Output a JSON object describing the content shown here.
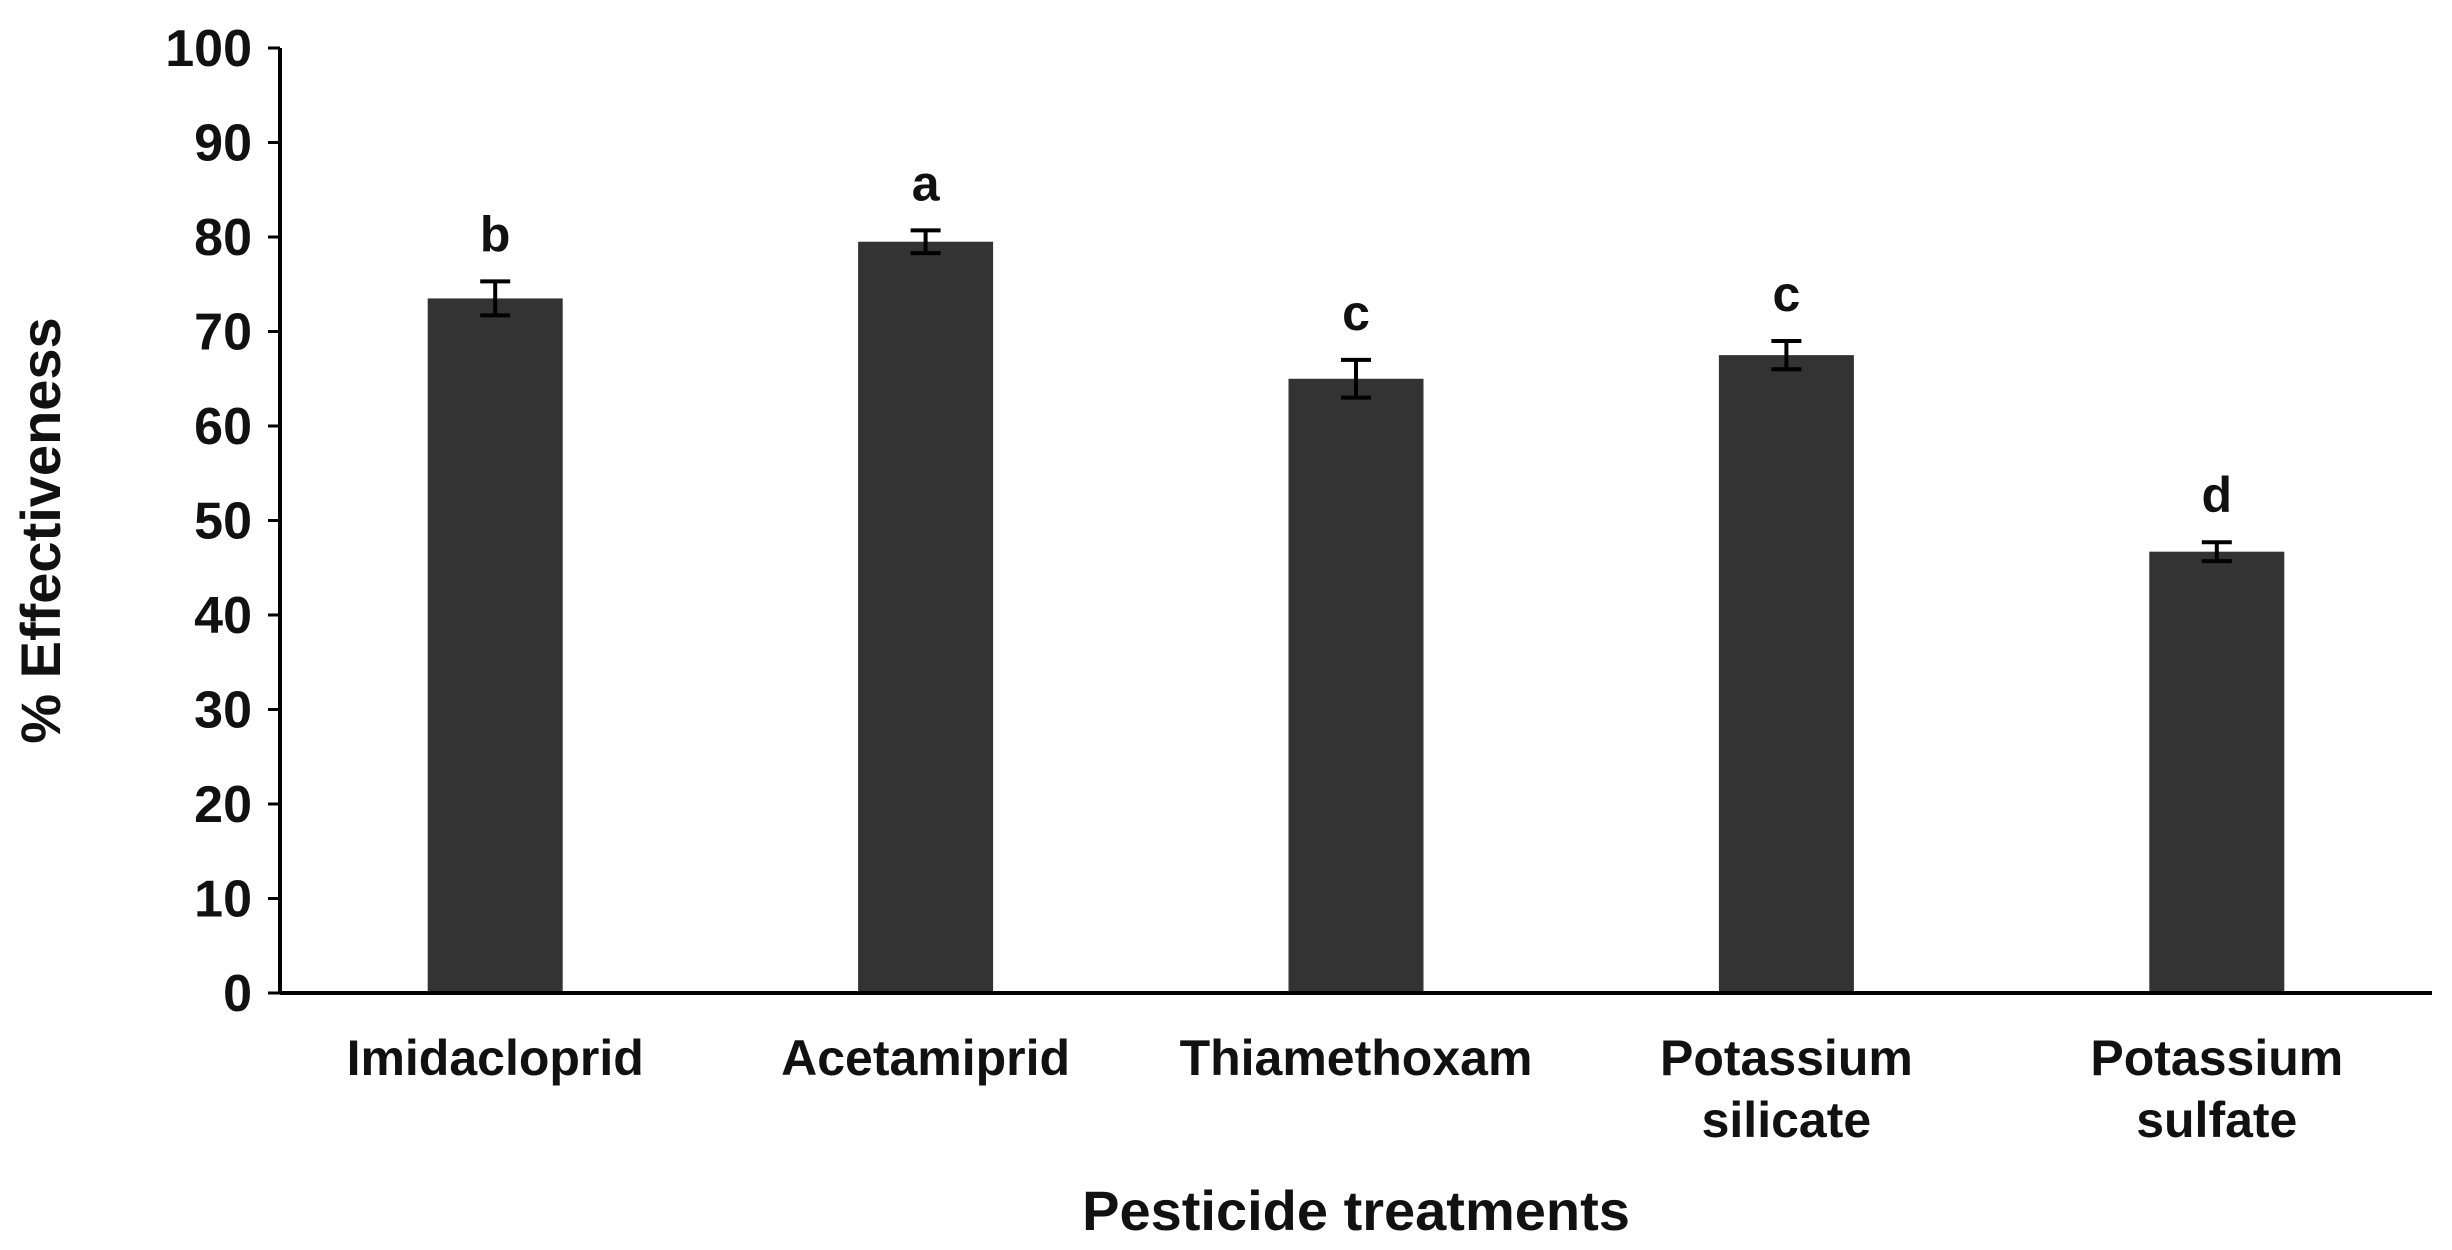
{
  "chart_data": {
    "type": "bar",
    "title": "",
    "xlabel": "Pesticide treatments",
    "ylabel": "% Effectiveness",
    "ylim": [
      0,
      100
    ],
    "yticks": [
      0,
      10,
      20,
      30,
      40,
      50,
      60,
      70,
      80,
      90,
      100
    ],
    "grid": false,
    "legend": "none",
    "categories": [
      [
        "Imidacloprid"
      ],
      [
        "Acetamiprid"
      ],
      [
        "Thiamethoxam"
      ],
      [
        "Potassium",
        "silicate"
      ],
      [
        "Potassium",
        "sulfate"
      ]
    ],
    "values": [
      73.5,
      79.5,
      65.0,
      67.5,
      46.7
    ],
    "errors": [
      1.8,
      1.2,
      2.0,
      1.5,
      1.0
    ],
    "significance": [
      "b",
      "a",
      "c",
      "c",
      "d"
    ],
    "colors": {
      "bar": "#333333",
      "axis": "#000000",
      "text": "#111111"
    }
  }
}
